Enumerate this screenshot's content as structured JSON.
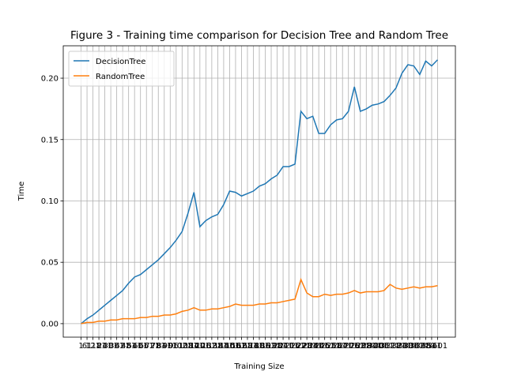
{
  "chart_data": {
    "type": "line",
    "title": "Figure 3 - Training time comparison for Decision Tree and Random Tree",
    "xlabel": "Training Size",
    "ylabel": "Time",
    "categories": [
      "1",
      "61",
      "121",
      "181",
      "241",
      "301",
      "361",
      "421",
      "481",
      "541",
      "601",
      "661",
      "721",
      "781",
      "841",
      "901",
      "961",
      "1021",
      "1081",
      "1141",
      "1201",
      "1261",
      "1321",
      "1381",
      "1441",
      "1501",
      "1561",
      "1621",
      "1681",
      "1741",
      "1801",
      "1861",
      "1921",
      "1981",
      "2041",
      "2101",
      "2161",
      "2221",
      "2281",
      "2341",
      "2401",
      "2461",
      "2521",
      "2581",
      "2641",
      "2701",
      "2761",
      "2821",
      "2881",
      "2941",
      "3001",
      "3061",
      "3121",
      "3181",
      "3241",
      "3301",
      "3361",
      "3421",
      "3481",
      "3541",
      "3601"
    ],
    "series": [
      {
        "name": "DecisionTree",
        "color": "#1f77b4",
        "values": [
          0,
          0.004,
          0.007,
          0.011,
          0.015,
          0.019,
          0.023,
          0.027,
          0.033,
          0.038,
          0.04,
          0.044,
          0.048,
          0.052,
          0.057,
          0.062,
          0.068,
          0.075,
          0.09,
          0.107,
          0.079,
          0.084,
          0.087,
          0.089,
          0.097,
          0.108,
          0.107,
          0.104,
          0.106,
          0.108,
          0.112,
          0.114,
          0.118,
          0.121,
          0.128,
          0.128,
          0.13,
          0.173,
          0.167,
          0.169,
          0.155,
          0.155,
          0.162,
          0.166,
          0.167,
          0.173,
          0.193,
          0.173,
          0.175,
          0.178,
          0.179,
          0.181,
          0.186,
          0.192,
          0.204,
          0.211,
          0.21,
          0.203,
          0.214,
          0.21,
          0.215
        ]
      },
      {
        "name": "RandomTree",
        "color": "#ff7f0e",
        "values": [
          0,
          0.001,
          0.001,
          0.002,
          0.002,
          0.003,
          0.003,
          0.004,
          0.004,
          0.004,
          0.005,
          0.005,
          0.006,
          0.006,
          0.007,
          0.007,
          0.008,
          0.01,
          0.011,
          0.013,
          0.011,
          0.011,
          0.012,
          0.012,
          0.013,
          0.014,
          0.016,
          0.015,
          0.015,
          0.015,
          0.016,
          0.016,
          0.017,
          0.017,
          0.018,
          0.019,
          0.02,
          0.036,
          0.025,
          0.022,
          0.022,
          0.024,
          0.023,
          0.024,
          0.024,
          0.025,
          0.027,
          0.025,
          0.026,
          0.026,
          0.026,
          0.027,
          0.032,
          0.029,
          0.028,
          0.029,
          0.03,
          0.029,
          0.03,
          0.03,
          0.031
        ]
      }
    ],
    "ylim": [
      -0.011,
      0.2264
    ],
    "yticks": [
      {
        "value": 0,
        "label": "0.00"
      },
      {
        "value": 0.05,
        "label": "0.05"
      },
      {
        "value": 0.1,
        "label": "0.10"
      },
      {
        "value": 0.15,
        "label": "0.15"
      },
      {
        "value": 0.2,
        "label": "0.20"
      }
    ],
    "grid": true,
    "legend": "upper left"
  }
}
